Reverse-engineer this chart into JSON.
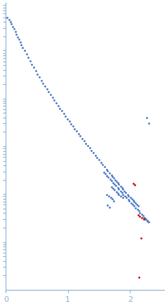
{
  "blue_points": [
    [
      0.02,
      500000.0
    ],
    [
      0.05,
      450000.0
    ],
    [
      0.07,
      400000.0
    ],
    [
      0.09,
      360000.0
    ],
    [
      0.11,
      320000.0
    ],
    [
      0.13,
      285000.0
    ],
    [
      0.15,
      250000.0
    ],
    [
      0.17,
      220000.0
    ],
    [
      0.19,
      195000.0
    ],
    [
      0.21,
      172000.0
    ],
    [
      0.23,
      152000.0
    ],
    [
      0.25,
      134000.0
    ],
    [
      0.27,
      118000.0
    ],
    [
      0.3,
      100000.0
    ],
    [
      0.33,
      85000.0
    ],
    [
      0.36,
      72000.0
    ],
    [
      0.39,
      61000.0
    ],
    [
      0.42,
      52000.0
    ],
    [
      0.45,
      44500.0
    ],
    [
      0.48,
      38000.0
    ],
    [
      0.51,
      32500.0
    ],
    [
      0.54,
      28000.0
    ],
    [
      0.57,
      24200.0
    ],
    [
      0.6,
      21000.0
    ],
    [
      0.63,
      18200.0
    ],
    [
      0.66,
      15800.0
    ],
    [
      0.69,
      13800.0
    ],
    [
      0.72,
      12000.0
    ],
    [
      0.75,
      10500.0
    ],
    [
      0.78,
      9200.0
    ],
    [
      0.81,
      8100.0
    ],
    [
      0.84,
      7100.0
    ],
    [
      0.87,
      6250.0
    ],
    [
      0.9,
      5500.0
    ],
    [
      0.93,
      4850.0
    ],
    [
      0.96,
      4280.0
    ],
    [
      0.99,
      3780.0
    ],
    [
      1.02,
      3350.0
    ],
    [
      1.05,
      2970.0
    ],
    [
      1.08,
      2630.0
    ],
    [
      1.11,
      2330.0
    ],
    [
      1.14,
      2070.0
    ],
    [
      1.17,
      1840.0
    ],
    [
      1.2,
      1640.0
    ],
    [
      1.23,
      1460.0
    ],
    [
      1.26,
      1300.0
    ],
    [
      1.29,
      1160.0
    ],
    [
      1.32,
      1030.0
    ],
    [
      1.35,
      920.0
    ],
    [
      1.38,
      820.0
    ],
    [
      1.41,
      730.0
    ],
    [
      1.44,
      650.0
    ],
    [
      1.47,
      580.0
    ],
    [
      1.5,
      520.0
    ],
    [
      1.53,
      465.0
    ],
    [
      1.56,
      415.0
    ],
    [
      1.59,
      370.0
    ],
    [
      1.62,
      332.0
    ],
    [
      1.64,
      310.0
    ],
    [
      1.67,
      282.0
    ],
    [
      1.7,
      255.0
    ],
    [
      1.72,
      235.0
    ],
    [
      1.74,
      217.0
    ],
    [
      1.76,
      200.0
    ],
    [
      1.78,
      185.0
    ],
    [
      1.8,
      172.0
    ],
    [
      1.82,
      160.0
    ],
    [
      1.85,
      146.0
    ],
    [
      1.87,
      136.0
    ],
    [
      1.89,
      126.0
    ],
    [
      1.91,
      117.0
    ],
    [
      1.93,
      109.0
    ],
    [
      1.96,
      99.0
    ],
    [
      1.98,
      92.0
    ],
    [
      2.01,
      85.0
    ],
    [
      2.03,
      79.0
    ],
    [
      2.05,
      73.5
    ],
    [
      2.07,
      69.0
    ],
    [
      2.09,
      64.0
    ],
    [
      2.11,
      60.0
    ],
    [
      2.13,
      56.0
    ],
    [
      1.58,
      290.0
    ],
    [
      1.6,
      268.0
    ],
    [
      1.63,
      244.0
    ],
    [
      1.65,
      226.0
    ],
    [
      1.68,
      205.0
    ],
    [
      1.7,
      190.0
    ],
    [
      1.73,
      173.0
    ],
    [
      1.75,
      160.0
    ],
    [
      1.77,
      149.0
    ],
    [
      1.8,
      136.0
    ],
    [
      1.82,
      126.0
    ],
    [
      1.85,
      115.0
    ],
    [
      1.87,
      107.0
    ],
    [
      1.89,
      99.0
    ],
    [
      1.92,
      91.0
    ],
    [
      1.94,
      85.0
    ],
    [
      1.97,
      78.0
    ],
    [
      1.99,
      72.0
    ],
    [
      2.02,
      66.0
    ],
    [
      2.04,
      61.0
    ],
    [
      2.07,
      56.0
    ],
    [
      2.09,
      52.0
    ],
    [
      2.12,
      48.0
    ],
    [
      2.14,
      44.5
    ],
    [
      2.16,
      41.0
    ],
    [
      2.19,
      38.0
    ],
    [
      2.21,
      35.0
    ],
    [
      2.23,
      32.5
    ],
    [
      2.26,
      30.0
    ],
    [
      2.28,
      27.8
    ],
    [
      2.3,
      25.8
    ],
    [
      1.7,
      142.0
    ],
    [
      1.73,
      131.0
    ],
    [
      1.75,
      122.0
    ],
    [
      1.78,
      113.0
    ],
    [
      1.8,
      105.0
    ],
    [
      1.82,
      98.0
    ],
    [
      1.85,
      91.0
    ],
    [
      1.88,
      85.0
    ],
    [
      1.63,
      98.0
    ],
    [
      1.66,
      91.0
    ],
    [
      1.69,
      85.0
    ],
    [
      1.71,
      79.0
    ],
    [
      1.74,
      73.0
    ],
    [
      1.64,
      58.0
    ],
    [
      1.67,
      54.0
    ],
    [
      2.27,
      4000.0
    ],
    [
      2.3,
      3000.0
    ],
    [
      2.22,
      32.0
    ],
    [
      2.25,
      30.0
    ],
    [
      2.28,
      27.0
    ]
  ],
  "red_points": [
    [
      2.05,
      165.0
    ],
    [
      2.08,
      155.0
    ],
    [
      2.13,
      37.0
    ],
    [
      2.16,
      34.0
    ],
    [
      2.19,
      32.0
    ],
    [
      2.22,
      30.0
    ],
    [
      2.18,
      12.0
    ],
    [
      2.15,
      1.8
    ]
  ],
  "blue_color": "#4472c4",
  "red_color": "#c00000",
  "marker_size": 4,
  "xlim": [
    0,
    2.55
  ],
  "ylim_log": [
    1,
    1000000.0
  ],
  "xticks": [
    0,
    1,
    2
  ],
  "background_color": "#ffffff",
  "axis_color": "#8bafd4",
  "tick_color": "#8bafd4",
  "label_color": "#8bafd4"
}
